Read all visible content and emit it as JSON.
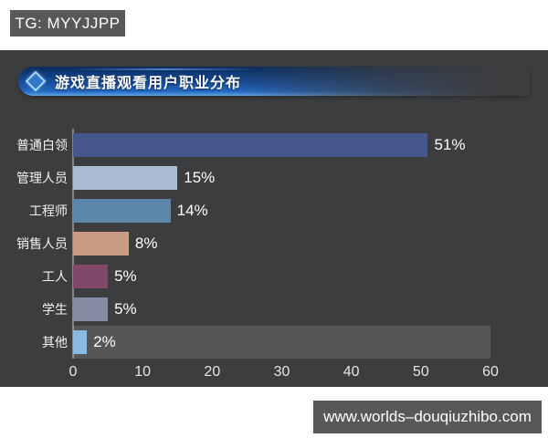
{
  "watermark_top": {
    "label": "TG: MYYJJPP"
  },
  "watermark_bottom": {
    "label": "www.worlds–douqiuzhibo.com"
  },
  "panel": {
    "title": "游戏直播观看用户职业分布"
  },
  "colors": {
    "page_bg": "#ffffff",
    "panel_bg": "#3c3d3f",
    "badge_bg": "#58585a",
    "banner_blue": "#1a52a0",
    "banner_edge_blue": "#6cb0ea",
    "axis_text": "#e4e5e7",
    "label_text": "#f2f3f5",
    "highlight_band": "rgba(255,255,255,0.13)"
  },
  "chart_data": {
    "type": "bar",
    "orientation": "horizontal",
    "title": "游戏直播观看用户职业分布",
    "categories": [
      "普通白领",
      "管理人员",
      "工程师",
      "销售人员",
      "工人",
      "学生",
      "其他"
    ],
    "values": [
      51,
      15,
      14,
      8,
      5,
      5,
      2
    ],
    "value_labels": [
      "51%",
      "15%",
      "14%",
      "8%",
      "5%",
      "5%",
      "2%"
    ],
    "bar_colors": [
      "#47578c",
      "#a9bcd2",
      "#5d86ab",
      "#cb9c85",
      "#82486a",
      "#848ca2",
      "#88bae4"
    ],
    "xlabel": "",
    "ylabel": "",
    "xlim": [
      0,
      60
    ],
    "x_ticks": [
      0,
      10,
      20,
      30,
      40,
      50,
      60
    ],
    "highlighted_category": "其他",
    "grid": false,
    "legend": false
  }
}
